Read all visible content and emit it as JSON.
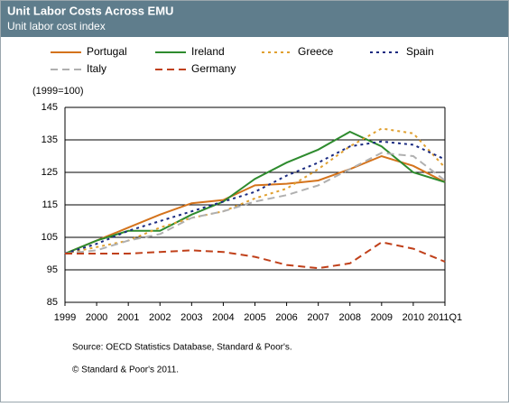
{
  "chart_data": {
    "type": "line",
    "title": "Unit Labor Costs Across EMU",
    "subtitle": "Unit labor cost index",
    "y_label": "(1999=100)",
    "categories": [
      "1999",
      "2000",
      "2001",
      "2002",
      "2003",
      "2004",
      "2005",
      "2006",
      "2007",
      "2008",
      "2009",
      "2010",
      "2011Q1"
    ],
    "series": [
      {
        "name": "Portugal",
        "color": "#d4731c",
        "dash": "solid",
        "values": [
          100,
          104,
          108,
          112,
          115.5,
          116.5,
          121,
          121.5,
          122.5,
          126,
          130,
          127,
          122
        ]
      },
      {
        "name": "Ireland",
        "color": "#2e8b2e",
        "dash": "solid",
        "values": [
          100,
          104,
          107,
          107,
          112,
          116,
          123,
          128,
          132,
          137.5,
          133,
          125,
          122
        ]
      },
      {
        "name": "Greece",
        "color": "#e0a030",
        "dash": "dot",
        "values": [
          100,
          102,
          104,
          108,
          111,
          113,
          117,
          120,
          126,
          133,
          138.5,
          137,
          126.5
        ]
      },
      {
        "name": "Spain",
        "color": "#1a2a80",
        "dash": "dot",
        "values": [
          100,
          103,
          107,
          110,
          113,
          116,
          119,
          124,
          128,
          133,
          134.5,
          133.5,
          129
        ]
      },
      {
        "name": "Italy",
        "color": "#b0b0b0",
        "dash": "dash",
        "values": [
          100,
          101,
          104,
          106,
          111,
          113,
          116,
          118,
          121,
          126,
          131,
          130,
          122.5
        ]
      },
      {
        "name": "Germany",
        "color": "#c0401a",
        "dash": "dash",
        "values": [
          100,
          100,
          100,
          100.5,
          101,
          100.5,
          99,
          96.5,
          95.5,
          97,
          103.5,
          101.5,
          97.5
        ]
      }
    ],
    "ylim": [
      85,
      145
    ],
    "yticks": [
      85,
      95,
      105,
      115,
      125,
      135,
      145
    ],
    "grid": true,
    "notes": [
      "Source: OECD Statistics Database, Standard & Poor's.",
      "© Standard & Poor's 2011."
    ]
  }
}
